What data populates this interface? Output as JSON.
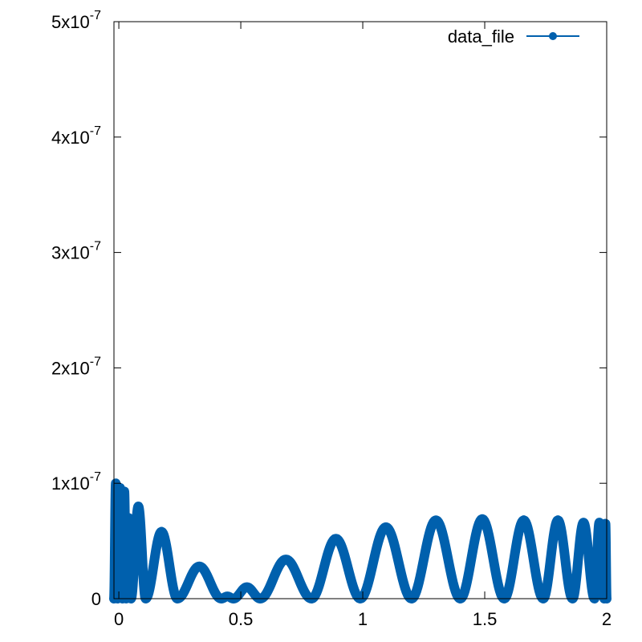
{
  "chart_data": {
    "type": "line",
    "title": "",
    "xlabel": "",
    "ylabel": "",
    "xlim": [
      -0.02,
      2
    ],
    "ylim": [
      0,
      5e-07
    ],
    "grid": false,
    "legend": {
      "placement": "top-right"
    },
    "x_ticks": [
      {
        "value": 0,
        "label": "0"
      },
      {
        "value": 0.5,
        "label": "0.5"
      },
      {
        "value": 1,
        "label": "1"
      },
      {
        "value": 1.5,
        "label": "1.5"
      },
      {
        "value": 2,
        "label": "2"
      }
    ],
    "y_ticks": [
      {
        "value": 0,
        "mantissa": "0",
        "exponent": ""
      },
      {
        "value": 1e-07,
        "mantissa": "1x10",
        "exponent": "-7"
      },
      {
        "value": 2e-07,
        "mantissa": "2x10",
        "exponent": "-7"
      },
      {
        "value": 3e-07,
        "mantissa": "3x10",
        "exponent": "-7"
      },
      {
        "value": 4e-07,
        "mantissa": "4x10",
        "exponent": "-7"
      },
      {
        "value": 5e-07,
        "mantissa": "5x10",
        "exponent": "-7"
      }
    ],
    "series": [
      {
        "name": "data_file",
        "color": "#0060ad",
        "style": "linespoints",
        "lobes": [
          {
            "x_start": -0.02,
            "x_end": -0.005,
            "peak": 1e-07
          },
          {
            "x_start": -0.005,
            "x_end": 0.015,
            "peak": 9.6e-08
          },
          {
            "x_start": 0.015,
            "x_end": 0.03,
            "peak": 9.3e-08
          },
          {
            "x_start": 0.03,
            "x_end": 0.05,
            "peak": 7e-08
          },
          {
            "x_start": 0.05,
            "x_end": 0.11,
            "peak": 8e-08
          },
          {
            "x_start": 0.11,
            "x_end": 0.24,
            "peak": 5.8e-08
          },
          {
            "x_start": 0.24,
            "x_end": 0.42,
            "peak": 2.8e-08
          },
          {
            "x_start": 0.42,
            "x_end": 0.47,
            "peak": 2e-09
          },
          {
            "x_start": 0.47,
            "x_end": 0.58,
            "peak": 1e-08
          },
          {
            "x_start": 0.58,
            "x_end": 0.79,
            "peak": 3.4e-08
          },
          {
            "x_start": 0.79,
            "x_end": 0.99,
            "peak": 5.2e-08
          },
          {
            "x_start": 0.99,
            "x_end": 1.2,
            "peak": 6.2e-08
          },
          {
            "x_start": 1.2,
            "x_end": 1.4,
            "peak": 6.8e-08
          },
          {
            "x_start": 1.4,
            "x_end": 1.58,
            "peak": 6.9e-08
          },
          {
            "x_start": 1.58,
            "x_end": 1.74,
            "peak": 6.8e-08
          },
          {
            "x_start": 1.74,
            "x_end": 1.86,
            "peak": 6.8e-08
          },
          {
            "x_start": 1.86,
            "x_end": 1.95,
            "peak": 6.6e-08
          },
          {
            "x_start": 1.95,
            "x_end": 1.99,
            "peak": 6.6e-08
          },
          {
            "x_start": 1.99,
            "x_end": 2.0,
            "peak": 6.5e-08
          }
        ]
      }
    ]
  }
}
